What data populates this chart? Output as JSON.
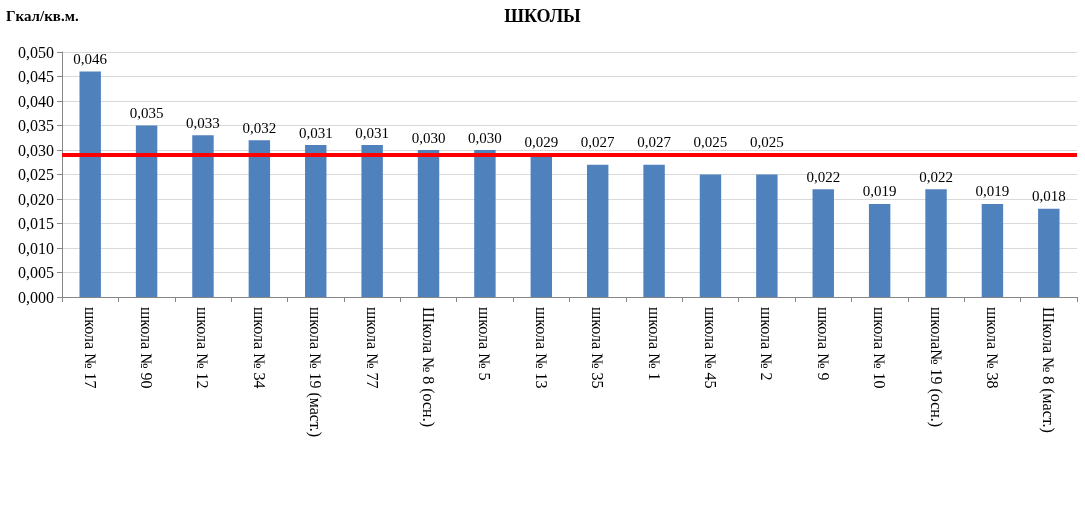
{
  "chart_data": {
    "type": "bar",
    "title": "ШКОЛЫ",
    "ylabel": "Гкал/кв.м.",
    "categories": [
      "школа № 17",
      "школа № 90",
      "школа № 12",
      "школа № 34",
      "школа № 19 (маст.)",
      "школа № 77",
      "Школа № 8 (осн.)",
      "школа № 5",
      "школа № 13",
      "школа № 35",
      "школа № 1",
      "школа № 45",
      "школа № 2",
      "школа № 9",
      "школа № 10",
      "школа№ 19 (осн.)",
      "школа № 38",
      "Школа № 8 (маст.)"
    ],
    "series": [
      {
        "color": "#4f81bd",
        "values": [
          0.046,
          0.035,
          0.033,
          0.032,
          0.031,
          0.031,
          0.03,
          0.03,
          0.029,
          0.027,
          0.027,
          0.025,
          0.025,
          0.022,
          0.019,
          0.022,
          0.019,
          0.018
        ],
        "value_labels": [
          "0,046",
          "0,035",
          "0,033",
          "0,032",
          "0,031",
          "0,031",
          "0,030",
          "0,030",
          "0,029",
          "0,027",
          "0,027",
          "0,025",
          "0,025",
          "0,022",
          "0,019",
          "0,022",
          "0,019",
          "0,018"
        ]
      }
    ],
    "ylim": [
      0,
      0.05
    ],
    "yticks": [
      {
        "value": 0,
        "label": "0,000"
      },
      {
        "value": 0.005,
        "label": "0,005"
      },
      {
        "value": 0.01,
        "label": "0,010"
      },
      {
        "value": 0.015,
        "label": "0,015"
      },
      {
        "value": 0.02,
        "label": "0,020"
      },
      {
        "value": 0.025,
        "label": "0,025"
      },
      {
        "value": 0.03,
        "label": "0,030"
      },
      {
        "value": 0.035,
        "label": "0,035"
      },
      {
        "value": 0.04,
        "label": "0,040"
      },
      {
        "value": 0.045,
        "label": "0,045"
      },
      {
        "value": 0.05,
        "label": "0,050"
      }
    ],
    "ref_lines": [
      {
        "axis": "y",
        "value": 0.029,
        "color": "#ff0000"
      }
    ],
    "grid": "y"
  }
}
